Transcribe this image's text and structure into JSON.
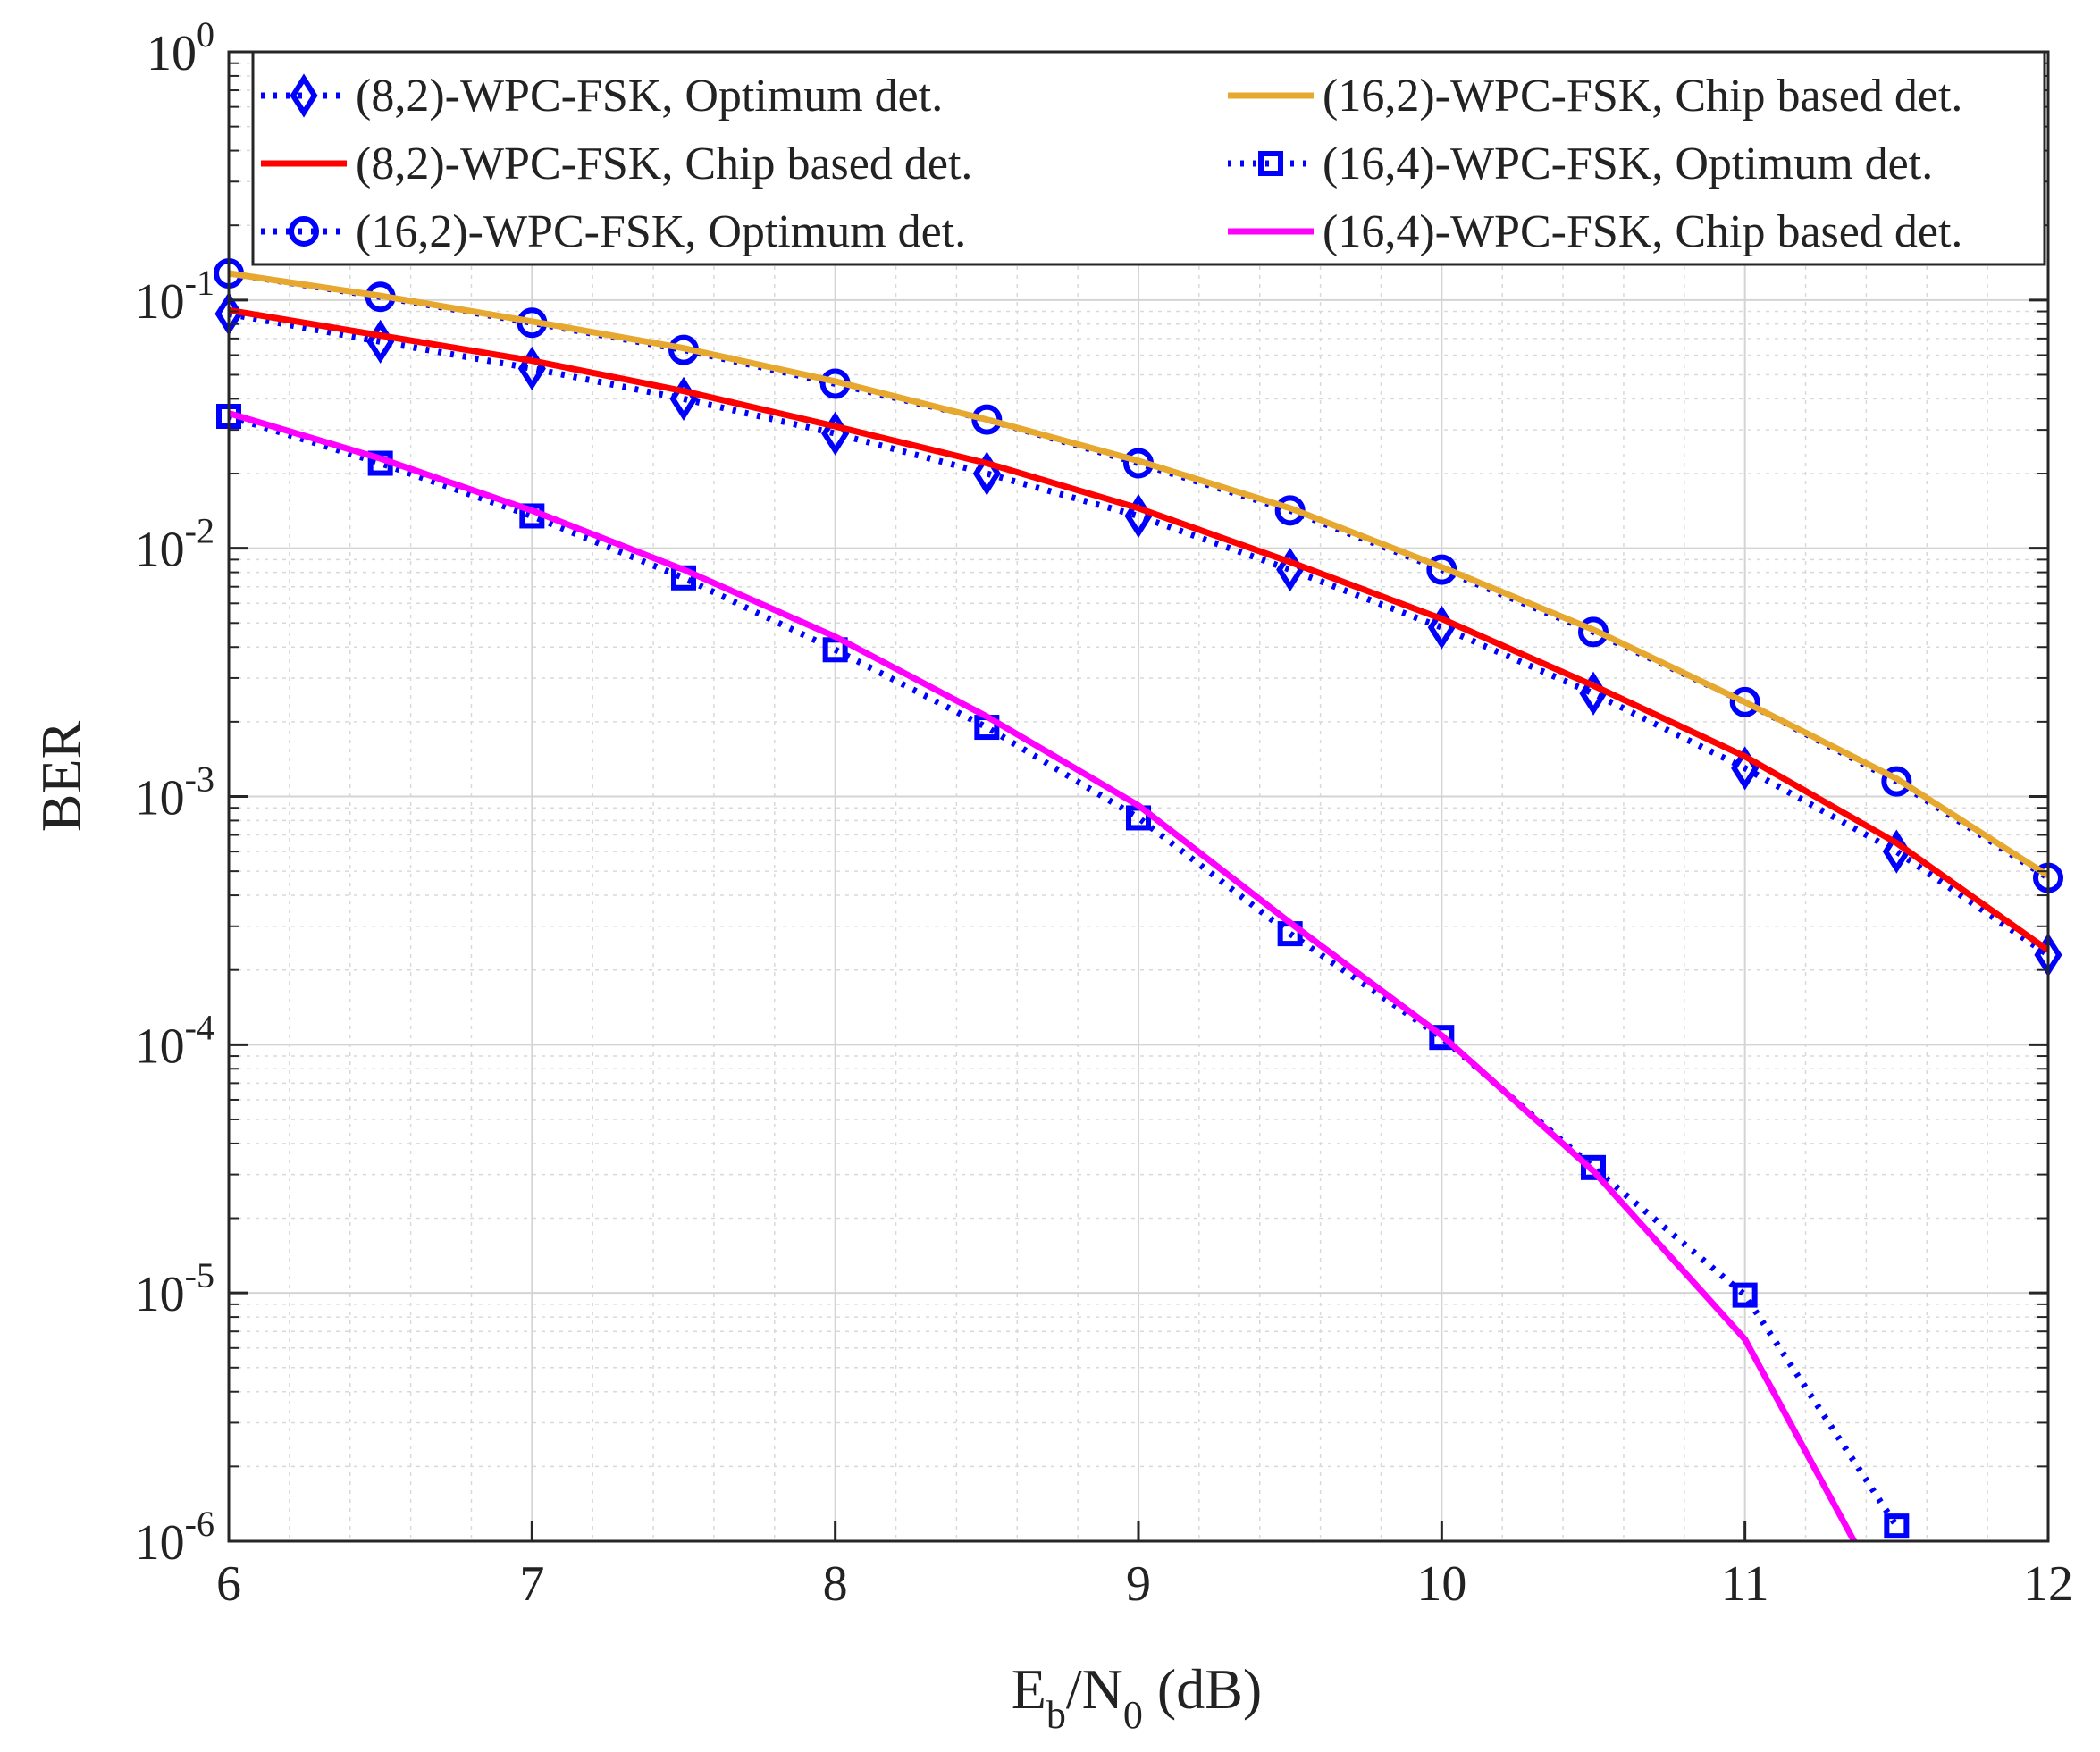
{
  "chart_data": {
    "type": "line",
    "title": "",
    "xlabel": {
      "base": "E",
      "sub1": "b",
      "mid": "/N",
      "sub2": "0",
      "tail": " (dB)"
    },
    "ylabel": "BER",
    "xlim": [
      6,
      12
    ],
    "ylim": [
      1e-06,
      1
    ],
    "yscale": "log",
    "grid": true,
    "minor_grid": true,
    "legend_location": "top",
    "x_ticks": [
      "6",
      "7",
      "8",
      "9",
      "10",
      "11",
      "12"
    ],
    "y_ticks": [
      {
        "base": "10",
        "exp": "0"
      },
      {
        "base": "10",
        "exp": "-1"
      },
      {
        "base": "10",
        "exp": "-2"
      },
      {
        "base": "10",
        "exp": "-3"
      },
      {
        "base": "10",
        "exp": "-4"
      },
      {
        "base": "10",
        "exp": "-5"
      },
      {
        "base": "10",
        "exp": "-6"
      }
    ],
    "series": [
      {
        "name": "(8,2)-WPC-FSK, Optimum det.",
        "color": "#0000ff",
        "style": "dotted",
        "marker": "diamond",
        "x": [
          6,
          6.5,
          7,
          7.5,
          8,
          8.5,
          9,
          9.5,
          10,
          10.5,
          11,
          11.5,
          12
        ],
        "y": [
          0.088,
          0.068,
          0.053,
          0.04,
          0.029,
          0.02,
          0.0135,
          0.0082,
          0.0048,
          0.0026,
          0.0013,
          0.0006,
          0.00023
        ]
      },
      {
        "name": "(8,2)-WPC-FSK, Chip based det.",
        "color": "#ff0000",
        "style": "solid",
        "marker": "none",
        "x": [
          6,
          6.5,
          7,
          7.5,
          8,
          8.5,
          9,
          9.5,
          10,
          10.5,
          11,
          11.5,
          12
        ],
        "y": [
          0.091,
          0.072,
          0.057,
          0.043,
          0.031,
          0.022,
          0.0145,
          0.0088,
          0.0052,
          0.0028,
          0.00145,
          0.00065,
          0.00024
        ]
      },
      {
        "name": "(16,2)-WPC-FSK, Optimum det.",
        "color": "#0000ff",
        "style": "dotted",
        "marker": "circle",
        "x": [
          6,
          6.5,
          7,
          7.5,
          8,
          8.5,
          9,
          9.5,
          10,
          10.5,
          11,
          11.5,
          12
        ],
        "y": [
          0.128,
          0.103,
          0.081,
          0.063,
          0.046,
          0.033,
          0.022,
          0.0142,
          0.0082,
          0.0046,
          0.0024,
          0.00115,
          0.00047
        ]
      },
      {
        "name": "(16,2)-WPC-FSK, Chip based det.",
        "color": "#e6a82e",
        "style": "solid",
        "marker": "none",
        "x": [
          6,
          6.5,
          7,
          7.5,
          8,
          8.5,
          9,
          9.5,
          10,
          10.5,
          11,
          11.5,
          12
        ],
        "y": [
          0.128,
          0.104,
          0.082,
          0.064,
          0.047,
          0.033,
          0.0225,
          0.0145,
          0.0084,
          0.0047,
          0.0024,
          0.00118,
          0.00048
        ]
      },
      {
        "name": "(16,4)-WPC-FSK, Optimum det.",
        "color": "#0000ff",
        "style": "dotted",
        "marker": "square",
        "x": [
          6,
          6.5,
          7,
          7.5,
          8,
          8.5,
          9,
          9.5,
          10,
          10.5,
          11,
          11.5
        ],
        "y": [
          0.034,
          0.022,
          0.0135,
          0.0076,
          0.0039,
          0.0019,
          0.00082,
          0.00028,
          0.000107,
          3.2e-05,
          9.8e-06,
          1.15e-06
        ]
      },
      {
        "name": "(16,4)-WPC-FSK, Chip based det.",
        "color": "#ff00ff",
        "style": "solid",
        "marker": "none",
        "x": [
          6,
          6.5,
          7,
          7.5,
          8,
          8.5,
          9,
          9.5,
          10,
          10.5,
          11,
          11.36
        ],
        "y": [
          0.035,
          0.023,
          0.0142,
          0.0082,
          0.0044,
          0.0021,
          0.00092,
          0.00031,
          0.000109,
          3.1e-05,
          6.5e-06,
          1e-06
        ]
      }
    ]
  }
}
